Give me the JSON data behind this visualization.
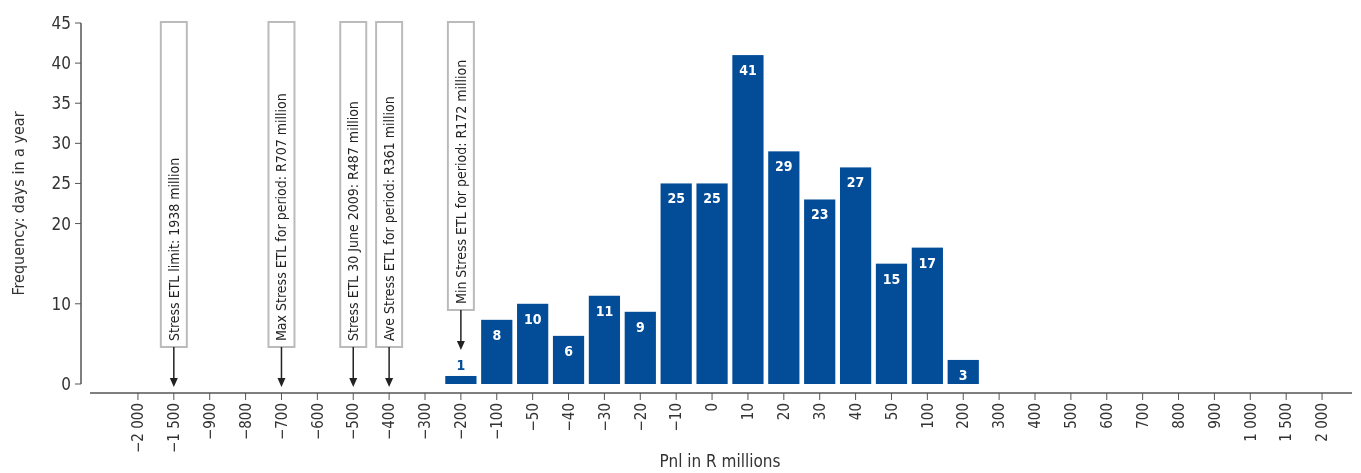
{
  "chart_data": {
    "type": "bar",
    "xlabel": "Pnl in R millions",
    "ylabel": "Frequency: days in a year",
    "categories": [
      "−2 000",
      "−1 500",
      "−900",
      "−800",
      "−700",
      "−600",
      "−500",
      "−400",
      "−300",
      "−200",
      "−100",
      "−50",
      "−40",
      "−30",
      "−20",
      "−10",
      "0",
      "10",
      "20",
      "30",
      "40",
      "50",
      "100",
      "200",
      "300",
      "400",
      "500",
      "600",
      "700",
      "800",
      "900",
      "1 000",
      "1 500",
      "2 000"
    ],
    "values": [
      null,
      null,
      null,
      null,
      null,
      null,
      null,
      null,
      null,
      1,
      8,
      10,
      6,
      11,
      9,
      25,
      25,
      41,
      29,
      23,
      27,
      15,
      17,
      3,
      null,
      null,
      null,
      null,
      null,
      null,
      null,
      null,
      null,
      null
    ],
    "color": "#024c98",
    "data_labels": true,
    "ylim": [
      0,
      45
    ],
    "yticks": [
      0,
      10,
      25,
      20,
      30,
      35,
      40,
      45
    ],
    "ref_lines": [
      {
        "axis": "x",
        "value": "−1 500",
        "label": "Stress ETL limit: 1938 million"
      },
      {
        "axis": "x",
        "value": "−700",
        "label": "Max Stress ETL for period: R707 million"
      },
      {
        "axis": "x",
        "value": "−500",
        "label": "Stress ETL 30 June 2009: R487 million"
      },
      {
        "axis": "x",
        "value": "−400",
        "label": "Ave Stress ETL for period: R361 million"
      },
      {
        "axis": "x",
        "value": "−200",
        "label": "Min Stress ETL for period: R172 million"
      }
    ]
  }
}
